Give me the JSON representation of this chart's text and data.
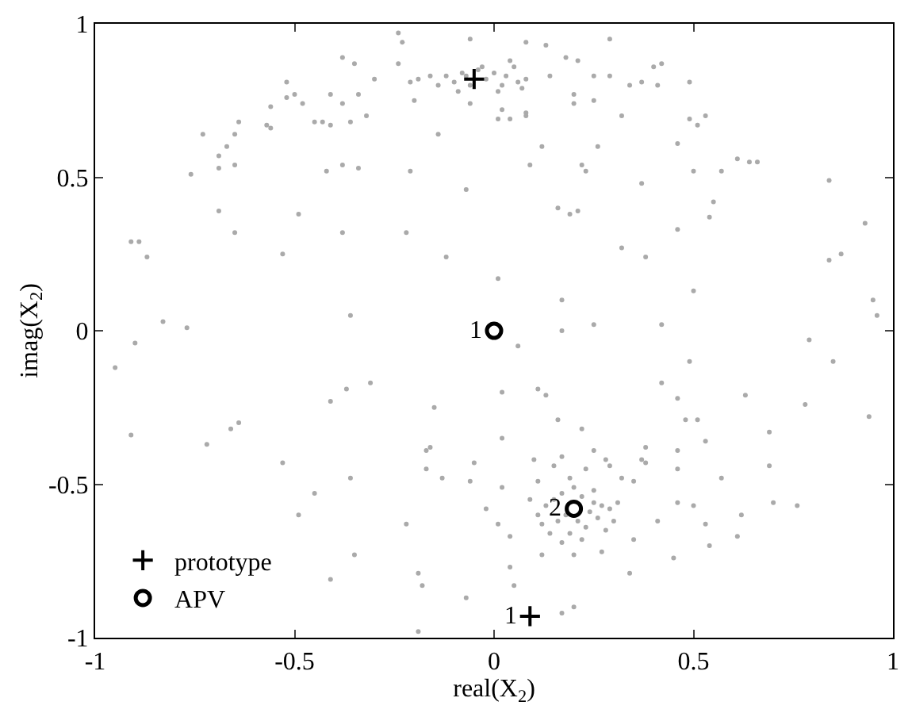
{
  "chart_data": {
    "type": "scatter",
    "xlabel": "real(X$_{2}$)",
    "ylabel": "imag(X$_{2}$)",
    "xlim": [
      -1,
      1
    ],
    "ylim": [
      -1,
      1
    ],
    "xticks": [
      -1,
      -0.5,
      0,
      0.5,
      1
    ],
    "yticks": [
      -1,
      -0.5,
      0,
      0.5,
      1
    ],
    "legend": "bottom left",
    "series": [
      {
        "color": "#aaaaaa",
        "marker": "circle",
        "x": [
          -0.24,
          -0.23,
          -0.06,
          0.08,
          0.13,
          0.29,
          -0.38,
          -0.35,
          -0.24,
          0.18,
          0.21,
          0.42,
          0.4,
          -0.3,
          -0.52,
          -0.5,
          -0.52,
          -0.48,
          -0.41,
          -0.38,
          -0.34,
          -0.56,
          0.14,
          0.25,
          0.29,
          0.34,
          0.37,
          0.41,
          0.49,
          0.2,
          0.2,
          0.25,
          -0.2,
          -0.06,
          0.02,
          0.08,
          0.04,
          0.01,
          0.08,
          0.32,
          0.49,
          0.51,
          0.53,
          -0.64,
          -0.57,
          -0.56,
          -0.45,
          -0.43,
          -0.41,
          -0.36,
          -0.32,
          -0.73,
          -0.65,
          -0.14,
          -0.67,
          -0.69,
          -0.69,
          -0.65,
          -0.76,
          -0.42,
          -0.38,
          -0.34,
          -0.21,
          0.12,
          0.09,
          0.22,
          0.23,
          0.26,
          0.46,
          0.5,
          0.57,
          0.61,
          0.64,
          0.66,
          0.84,
          0.37,
          -0.07,
          -0.69,
          -0.49,
          0.16,
          0.19,
          0.21,
          0.55,
          0.54,
          -0.65,
          -0.38,
          -0.22,
          0.46,
          0.93,
          -0.91,
          -0.89,
          -0.87,
          -0.53,
          -0.12,
          0.32,
          0.38,
          0.84,
          0.87,
          -0.12,
          -0.1,
          -0.08,
          -0.06,
          -0.04,
          -0.02,
          0.0,
          0.02,
          0.03,
          0.05,
          0.06,
          0.07,
          -0.14,
          -0.16,
          -0.19,
          -0.21,
          -0.09,
          0.01,
          0.04,
          -0.03,
          -0.07,
          0.08,
          0.01,
          0.5,
          0.17,
          0.95,
          0.96,
          -0.36,
          -0.83,
          -0.77,
          0.17,
          0.25,
          0.42,
          -0.9,
          0.06,
          0.79,
          0.49,
          0.85,
          -0.95,
          0.42,
          -0.37,
          -0.31,
          -0.41,
          0.02,
          0.11,
          0.13,
          0.46,
          0.63,
          -0.15,
          0.78,
          0.16,
          0.48,
          0.51,
          0.94,
          -0.64,
          -0.66,
          -0.91,
          0.22,
          0.69,
          0.02,
          0.53,
          -0.72,
          -0.16,
          -0.17,
          0.25,
          0.38,
          0.46,
          -0.53,
          -0.05,
          0.1,
          0.17,
          0.15,
          0.28,
          0.37,
          0.38,
          0.69,
          -0.17,
          -0.36,
          0.23,
          0.46,
          0.29,
          0.57,
          -0.13,
          -0.06,
          0.11,
          0.19,
          0.32,
          0.35,
          -0.45,
          0.02,
          -0.49,
          -0.22,
          -0.02,
          0.01,
          0.04,
          0.12,
          0.2,
          0.27,
          0.35,
          0.34,
          0.46,
          0.5,
          0.53,
          0.61,
          0.62,
          0.7,
          0.76,
          0.54,
          0.45,
          0.41,
          -0.35,
          -0.41,
          -0.19,
          -0.18,
          -0.07,
          0.04,
          0.05,
          0.17,
          0.2,
          -0.19,
          0.15,
          0.17,
          0.22,
          0.25,
          0.27,
          0.24,
          0.18,
          0.16,
          0.21,
          0.23,
          0.19,
          0.26,
          0.29,
          0.13,
          0.11,
          0.14,
          0.22,
          0.28,
          0.31,
          0.09,
          0.2,
          0.25,
          0.17,
          0.3,
          0.12
        ],
        "values": [
          0.97,
          0.94,
          0.95,
          0.94,
          0.93,
          0.95,
          0.89,
          0.87,
          0.87,
          0.89,
          0.88,
          0.87,
          0.86,
          0.82,
          0.81,
          0.77,
          0.76,
          0.74,
          0.77,
          0.74,
          0.77,
          0.73,
          0.83,
          0.83,
          0.83,
          0.8,
          0.81,
          0.8,
          0.81,
          0.77,
          0.74,
          0.75,
          0.75,
          0.74,
          0.72,
          0.71,
          0.69,
          0.69,
          0.7,
          0.7,
          0.69,
          0.67,
          0.7,
          0.68,
          0.67,
          0.66,
          0.68,
          0.68,
          0.67,
          0.68,
          0.7,
          0.64,
          0.64,
          0.64,
          0.6,
          0.57,
          0.53,
          0.54,
          0.51,
          0.52,
          0.54,
          0.53,
          0.52,
          0.6,
          0.54,
          0.54,
          0.52,
          0.6,
          0.61,
          0.52,
          0.52,
          0.56,
          0.55,
          0.55,
          0.49,
          0.48,
          0.46,
          0.39,
          0.38,
          0.4,
          0.38,
          0.39,
          0.42,
          0.37,
          0.32,
          0.32,
          0.32,
          0.33,
          0.35,
          0.29,
          0.29,
          0.24,
          0.25,
          0.24,
          0.27,
          0.24,
          0.23,
          0.25,
          0.83,
          0.81,
          0.84,
          0.8,
          0.85,
          0.82,
          0.84,
          0.8,
          0.83,
          0.86,
          0.81,
          0.79,
          0.8,
          0.83,
          0.82,
          0.81,
          0.78,
          0.78,
          0.88,
          0.86,
          0.83,
          0.82,
          0.17,
          0.13,
          0.1,
          0.1,
          0.05,
          0.05,
          0.03,
          0.01,
          0.0,
          0.02,
          0.02,
          -0.04,
          -0.05,
          -0.03,
          -0.1,
          -0.1,
          -0.12,
          -0.17,
          -0.19,
          -0.17,
          -0.23,
          -0.2,
          -0.19,
          -0.21,
          -0.22,
          -0.21,
          -0.25,
          -0.24,
          -0.29,
          -0.29,
          -0.29,
          -0.28,
          -0.3,
          -0.32,
          -0.34,
          -0.32,
          -0.33,
          -0.35,
          -0.36,
          -0.37,
          -0.38,
          -0.39,
          -0.39,
          -0.38,
          -0.39,
          -0.43,
          -0.43,
          -0.42,
          -0.41,
          -0.44,
          -0.42,
          -0.42,
          -0.43,
          -0.44,
          -0.45,
          -0.48,
          -0.45,
          -0.45,
          -0.44,
          -0.48,
          -0.48,
          -0.49,
          -0.49,
          -0.48,
          -0.48,
          -0.49,
          -0.53,
          -0.51,
          -0.6,
          -0.63,
          -0.58,
          -0.63,
          -0.67,
          -0.73,
          -0.73,
          -0.72,
          -0.68,
          -0.79,
          -0.56,
          -0.57,
          -0.63,
          -0.67,
          -0.6,
          -0.56,
          -0.57,
          -0.7,
          -0.74,
          -0.62,
          -0.73,
          -0.81,
          -0.79,
          -0.83,
          -0.87,
          -0.77,
          -0.83,
          -0.92,
          -0.9,
          -0.98,
          -0.55,
          -0.53,
          -0.54,
          -0.56,
          -0.57,
          -0.59,
          -0.6,
          -0.62,
          -0.62,
          -0.64,
          -0.66,
          -0.61,
          -0.58,
          -0.57,
          -0.6,
          -0.66,
          -0.68,
          -0.65,
          -0.56,
          -0.55,
          -0.51,
          -0.52,
          -0.69,
          -0.62,
          -0.63
        ]
      },
      {
        "name": "prototype",
        "color": "#000000",
        "marker": "cross",
        "x": [
          -0.05,
          0.09
        ],
        "values": [
          0.82,
          -0.93
        ]
      },
      {
        "name": "APV",
        "color": "#000000",
        "marker": "circle-open",
        "x": [
          0,
          0.2
        ],
        "values": [
          0,
          -0.58
        ]
      }
    ],
    "annotations": [
      {
        "text": "1",
        "x": 0,
        "y": 0
      },
      {
        "text": "2",
        "x": 0.2,
        "y": -0.58
      },
      {
        "text": "1",
        "x": 0.09,
        "y": -0.93
      }
    ]
  }
}
